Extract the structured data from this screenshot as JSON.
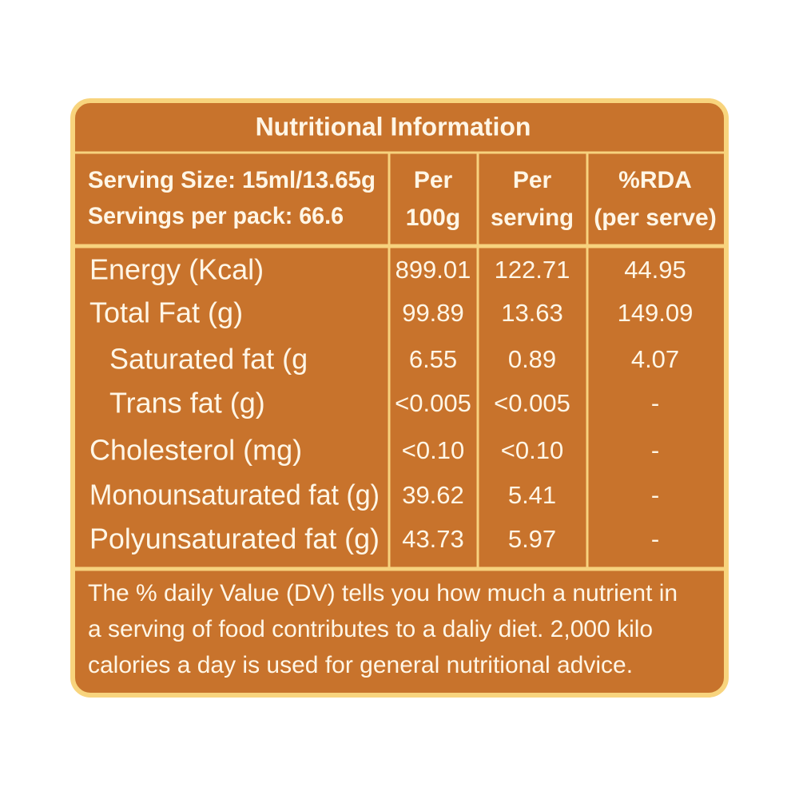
{
  "header": {
    "title": "Nutritional Information",
    "serving_size": "Serving Size: 15ml/13.65g",
    "servings_per_pack": "Servings per pack: 66.6",
    "columns": [
      [
        "Per",
        "100g"
      ],
      [
        "Per",
        "serving"
      ],
      [
        "%RDA",
        "(per serve)"
      ]
    ]
  },
  "table": {
    "rows": [
      [
        "Energy (Kcal)",
        "899.01",
        "122.71",
        "44.95"
      ],
      [
        "Total Fat (g)",
        "99.89",
        "13.63",
        "149.09"
      ],
      [
        "Saturated fat (g",
        "6.55",
        "0.89",
        "4.07"
      ],
      [
        "Trans fat (g)",
        "<0.005",
        "<0.005",
        "-"
      ],
      [
        "Cholesterol (mg)",
        "<0.10",
        "<0.10",
        "-"
      ],
      [
        "Monounsaturated fat (g)",
        "39.62",
        "5.41",
        "-"
      ],
      [
        "Polyunsaturated fat (g)",
        "43.73",
        "5.97",
        "-"
      ]
    ]
  },
  "footnote": {
    "lines": [
      "The % daily Value (DV) tells you how much a nutrient in",
      "a serving of food contributes to a daliy diet. 2,000 kilo",
      "calories a day is used for general nutritional advice."
    ]
  }
}
